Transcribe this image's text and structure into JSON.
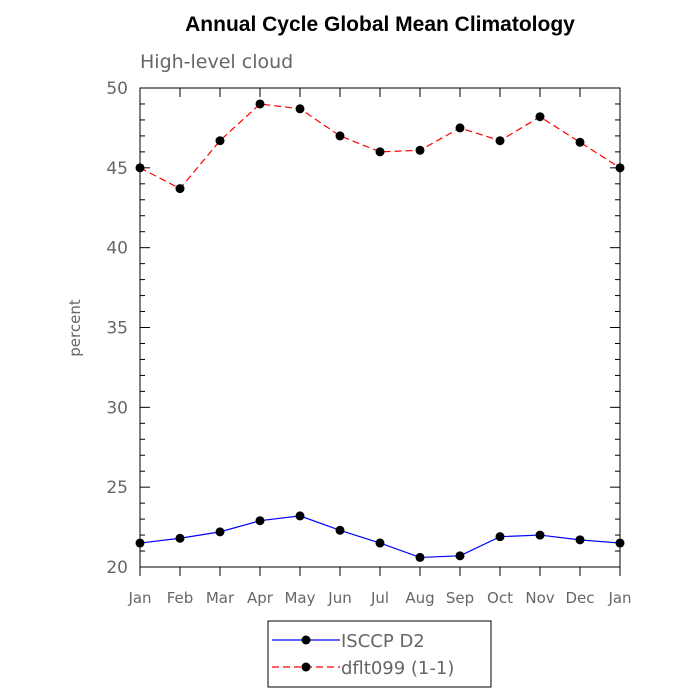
{
  "chart_data": {
    "type": "line",
    "title": "Annual Cycle Global Mean Climatology",
    "subtitle": "High-level cloud",
    "xlabel": "",
    "ylabel": "percent",
    "categories": [
      "Jan",
      "Feb",
      "Mar",
      "Apr",
      "May",
      "Jun",
      "Jul",
      "Aug",
      "Sep",
      "Oct",
      "Nov",
      "Dec",
      "Jan"
    ],
    "ylim": [
      20,
      50
    ],
    "yticks": [
      20,
      25,
      30,
      35,
      40,
      45,
      50
    ],
    "series": [
      {
        "name": "ISCCP D2",
        "color": "#0000ff",
        "line_style": "solid",
        "marker": "filled-circle",
        "values": [
          21.5,
          21.8,
          22.2,
          22.9,
          23.2,
          22.3,
          21.5,
          20.6,
          20.7,
          21.9,
          22.0,
          21.7,
          21.5
        ]
      },
      {
        "name": "dflt099 (1-1)",
        "color": "#ff0000",
        "line_style": "dashed",
        "marker": "filled-circle",
        "values": [
          45.0,
          43.7,
          46.7,
          49.0,
          48.7,
          47.0,
          46.0,
          46.1,
          47.5,
          46.7,
          48.2,
          46.6,
          45.0
        ]
      }
    ],
    "legend_position": "bottom-center",
    "grid": false
  }
}
